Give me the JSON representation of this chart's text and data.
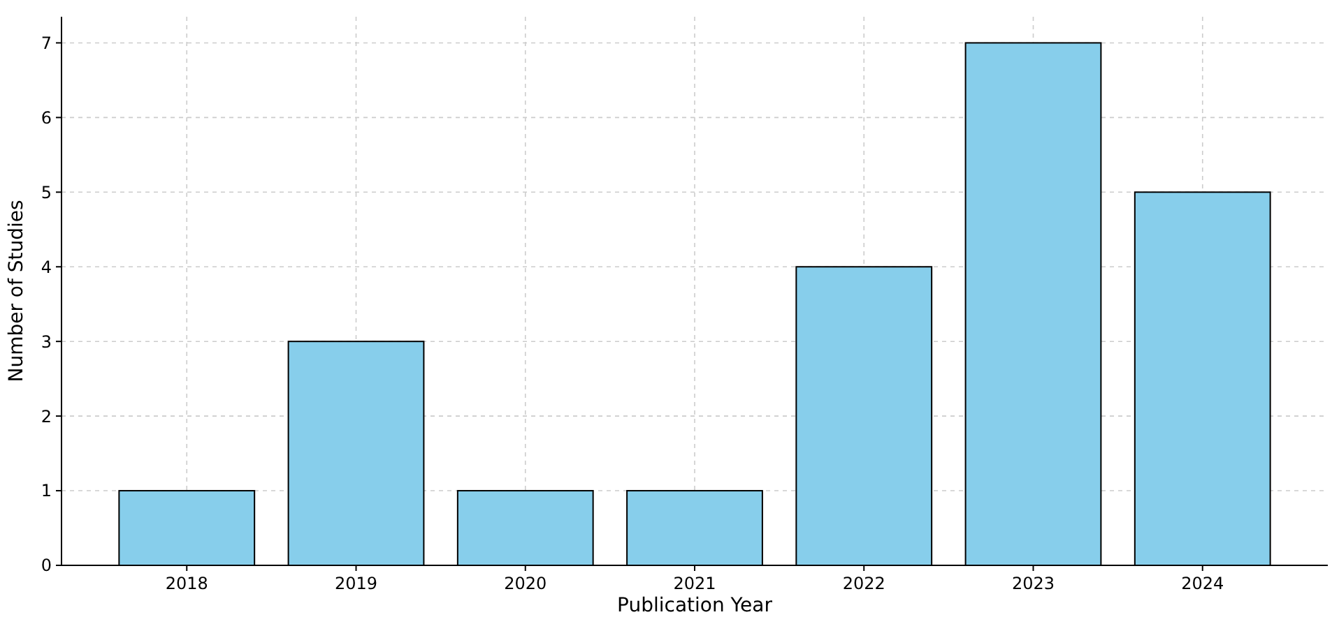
{
  "chart_data": {
    "type": "bar",
    "xlabel": "Publication Year",
    "ylabel": "Number of Studies",
    "categories": [
      "2018",
      "2019",
      "2020",
      "2021",
      "2022",
      "2023",
      "2024"
    ],
    "values": [
      1,
      3,
      1,
      1,
      4,
      7,
      5
    ],
    "color": "#87ceeb",
    "ylim": [
      0,
      7.35
    ],
    "yticks": [
      0,
      1,
      2,
      3,
      4,
      5,
      6,
      7
    ],
    "grid": true,
    "line_style": "dashed"
  }
}
